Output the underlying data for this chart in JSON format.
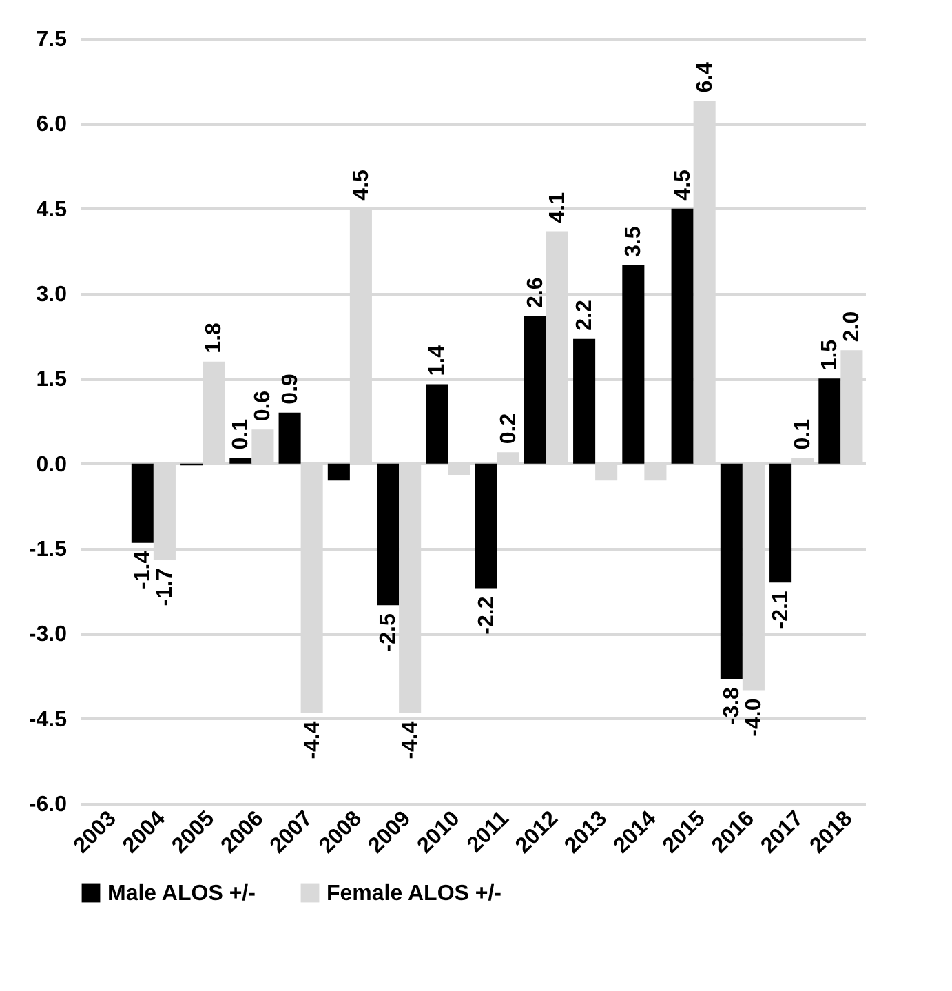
{
  "chart_data": {
    "type": "bar",
    "categories": [
      "2003",
      "2004",
      "2005",
      "2006",
      "2007",
      "2008",
      "2009",
      "2010",
      "2011",
      "2012",
      "2013",
      "2014",
      "2015",
      "2016",
      "2017",
      "2018"
    ],
    "series": [
      {
        "name": "Male ALOS +/-",
        "color": "#000000",
        "values": [
          null,
          -1.4,
          -0.03,
          0.1,
          0.9,
          -0.3,
          -2.5,
          1.4,
          -2.2,
          2.6,
          2.2,
          3.5,
          4.5,
          -3.8,
          -2.1,
          1.5
        ],
        "value_labels": [
          null,
          "-1.4",
          null,
          "0.1",
          "0.9",
          null,
          "-2.5",
          "1.4",
          "-2.2",
          "2.6",
          "2.2",
          "3.5",
          "4.5",
          "-3.8",
          "-2.1",
          "1.5"
        ]
      },
      {
        "name": "Female ALOS +/-",
        "color": "#d9d9d9",
        "values": [
          null,
          -1.7,
          1.8,
          0.6,
          -4.4,
          4.5,
          -4.4,
          -0.2,
          0.2,
          4.1,
          -0.3,
          -0.3,
          6.4,
          -4.0,
          0.1,
          2.0
        ],
        "value_labels": [
          null,
          "-1.7",
          "1.8",
          "0.6",
          "-4.4",
          "4.5",
          "-4.4",
          null,
          "0.2",
          "4.1",
          null,
          null,
          "6.4",
          "-4.0",
          "0.1",
          "2.0"
        ]
      }
    ],
    "ylim": [
      -6,
      7.5
    ],
    "yticks": [
      {
        "value": -6,
        "label": "-6.0"
      },
      {
        "value": -4.5,
        "label": "-4.5"
      },
      {
        "value": -3,
        "label": "-3.0"
      },
      {
        "value": -1.5,
        "label": "-1.5"
      },
      {
        "value": 0,
        "label": "0.0"
      },
      {
        "value": 1.5,
        "label": "1.5"
      },
      {
        "value": 3,
        "label": "3.0"
      },
      {
        "value": 4.5,
        "label": "4.5"
      },
      {
        "value": 6,
        "label": "6.0"
      },
      {
        "value": 7.5,
        "label": "7.5"
      }
    ],
    "grid": "y",
    "legend": "bottom"
  }
}
